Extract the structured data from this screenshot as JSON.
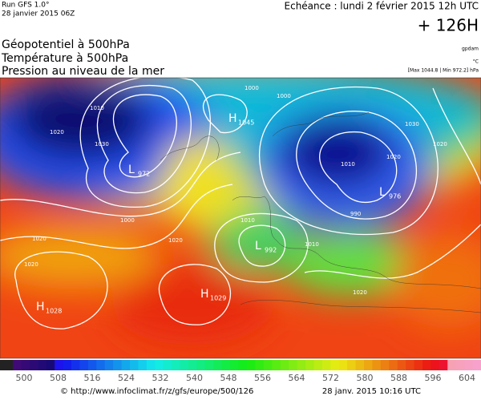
{
  "header": {
    "run": "Run GFS 1.0°",
    "run_date": "28 janvier 2015 06Z",
    "echeance": "Echéance : lundi 2 février 2015 12h UTC",
    "lead": "+ 126H"
  },
  "legend_titles": [
    "Géopotentiel à 500hPa",
    "Température à 500hPa",
    "Pression au niveau de la mer"
  ],
  "units": {
    "geopotential": "gpdam",
    "temperature": "°C",
    "pressure": "[Max 1044.8 | Min 972.2] hPa"
  },
  "pressure_centers": [
    {
      "type": "H",
      "value": "1045"
    },
    {
      "type": "L",
      "value": "972"
    },
    {
      "type": "L",
      "value": "976"
    },
    {
      "type": "L",
      "value": "992"
    },
    {
      "type": "H",
      "value": "1029"
    },
    {
      "type": "H",
      "value": "1028"
    }
  ],
  "isobar_labels": [
    "1020",
    "1010",
    "1030",
    "1020",
    "1000",
    "1010",
    "1020",
    "1030",
    "1020",
    "990",
    "1000",
    "1010",
    "1020",
    "1020",
    "1020",
    "1010",
    "1000"
  ],
  "colorbar": {
    "labels": [
      500,
      508,
      516,
      524,
      532,
      540,
      548,
      556,
      564,
      572,
      580,
      588,
      596,
      604
    ]
  },
  "footer": {
    "source": "© http://www.infoclimat.fr/z/gfs/europe/500/126",
    "timestamp": "28 janv. 2015 10:16 UTC"
  }
}
